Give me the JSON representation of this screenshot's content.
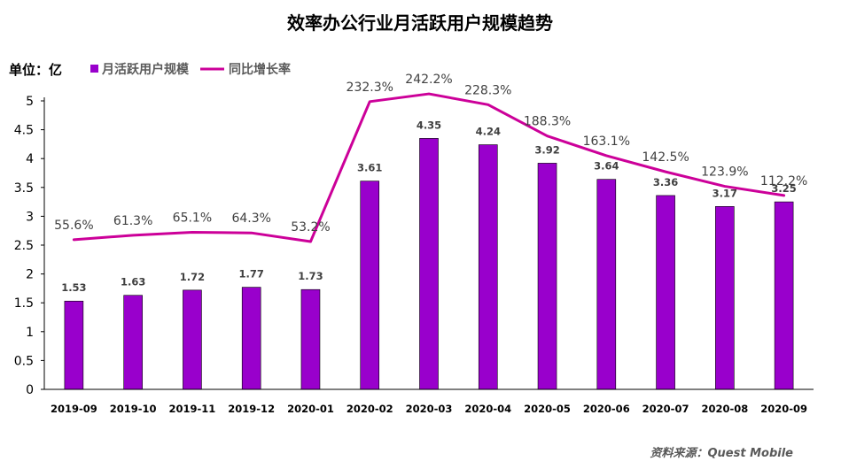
{
  "chart_data": {
    "type": "bar",
    "title": "效率办公行业月活跃用户规模趋势",
    "unit_label": "单位：亿",
    "categories": [
      "2019-09",
      "2019-10",
      "2019-11",
      "2019-12",
      "2020-01",
      "2020-02",
      "2020-03",
      "2020-04",
      "2020-05",
      "2020-06",
      "2020-07",
      "2020-08",
      "2020-09"
    ],
    "series": [
      {
        "name": "月活跃用户规模",
        "kind": "bar",
        "color": "#9900CC",
        "values": [
          1.53,
          1.63,
          1.72,
          1.77,
          1.73,
          3.61,
          4.35,
          4.24,
          3.92,
          3.64,
          3.36,
          3.17,
          3.25
        ],
        "labels": [
          "1.53",
          "1.63",
          "1.72",
          "1.77",
          "1.73",
          "3.61",
          "4.35",
          "4.24",
          "3.92",
          "3.64",
          "3.36",
          "3.17",
          "3.25"
        ]
      },
      {
        "name": "同比增长率",
        "kind": "line",
        "color": "#CC0099",
        "values": [
          55.6,
          61.3,
          65.1,
          64.3,
          53.2,
          232.3,
          242.2,
          228.3,
          188.3,
          163.1,
          142.5,
          123.9,
          112.2
        ],
        "labels": [
          "55.6%",
          "61.3%",
          "65.1%",
          "64.3%",
          "53.2%",
          "232.3%",
          "242.2%",
          "228.3%",
          "188.3%",
          "163.1%",
          "142.5%",
          "123.9%",
          "112.2%"
        ]
      }
    ],
    "yticks": [
      "0",
      "0.5",
      "1",
      "1.5",
      "2",
      "2.5",
      "3",
      "3.5",
      "4",
      "4.5",
      "5"
    ],
    "ylim": [
      0,
      5
    ],
    "legend_position": "top-left",
    "grid": false,
    "source": "资料来源：Quest Mobile"
  }
}
